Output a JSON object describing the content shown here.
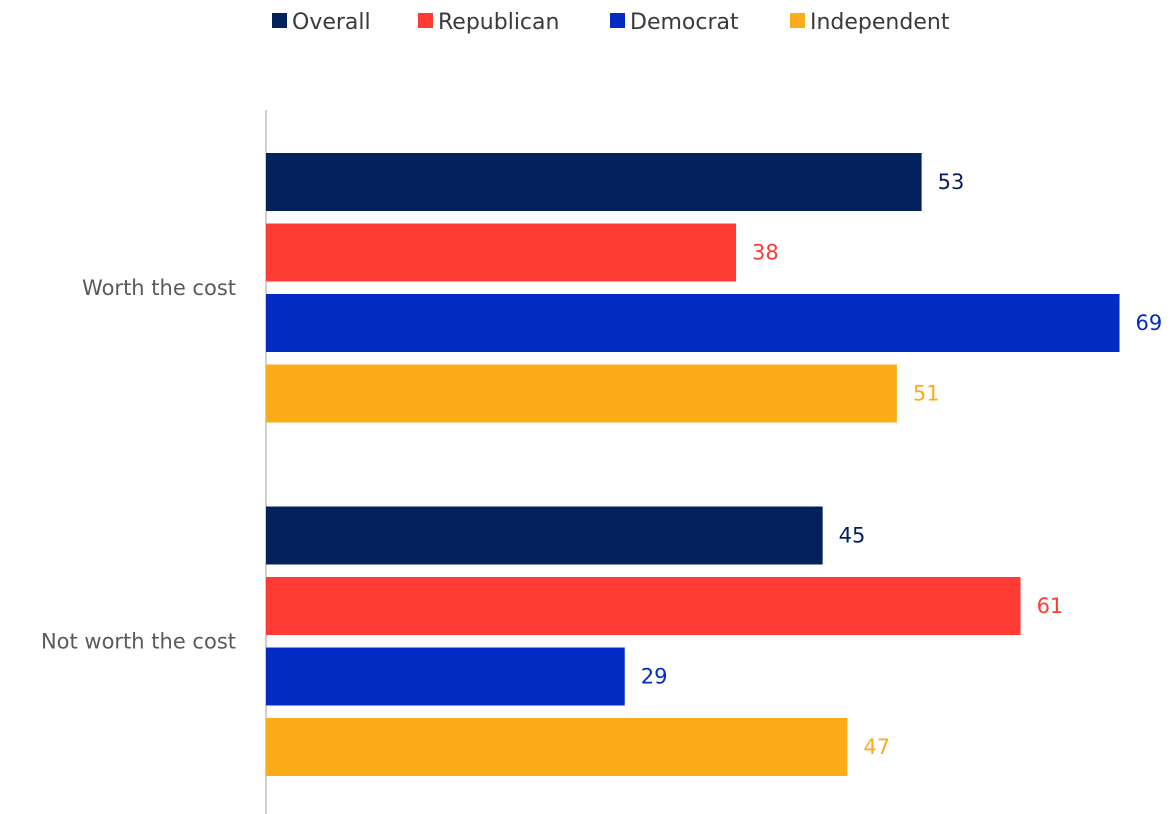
{
  "chart_data": {
    "type": "bar",
    "orientation": "horizontal",
    "categories": [
      "Worth the cost",
      "Not worth the cost"
    ],
    "series": [
      {
        "name": "Overall",
        "color": "#03215c",
        "values": [
          53,
          45
        ]
      },
      {
        "name": "Republican",
        "color": "#ff3b36",
        "values": [
          38,
          61
        ]
      },
      {
        "name": "Democrat",
        "color": "#022cc4",
        "values": [
          69,
          29
        ]
      },
      {
        "name": "Independent",
        "color": "#fcab19",
        "values": [
          51,
          47
        ]
      }
    ],
    "legend": "top-center",
    "grid": false,
    "xlim": [
      0,
      69
    ],
    "data_labels": true,
    "title": "",
    "xlabel": "",
    "ylabel": ""
  }
}
